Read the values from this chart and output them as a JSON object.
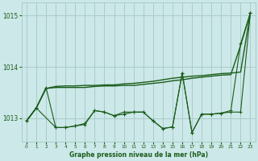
{
  "bg_color": "#cce8e8",
  "grid_color": "#aacccc",
  "line_color": "#1a5c1a",
  "title": "Graphe pression niveau de la mer (hPa)",
  "xlim": [
    -0.5,
    23.5
  ],
  "ylim": [
    1012.55,
    1015.25
  ],
  "yticks": [
    1013,
    1014,
    1015
  ],
  "xticks": [
    0,
    1,
    2,
    3,
    4,
    5,
    6,
    7,
    8,
    9,
    10,
    11,
    12,
    13,
    14,
    15,
    16,
    17,
    18,
    19,
    20,
    21,
    22,
    23
  ],
  "series1_x": [
    0,
    1,
    2,
    3,
    4,
    5,
    6,
    7,
    8,
    9,
    10,
    11,
    12,
    13,
    14,
    15,
    16,
    17,
    18,
    19,
    20,
    21,
    22,
    23
  ],
  "series1_y": [
    1012.95,
    1013.2,
    1013.58,
    1013.62,
    1013.63,
    1013.63,
    1013.64,
    1013.64,
    1013.65,
    1013.65,
    1013.67,
    1013.68,
    1013.7,
    1013.72,
    1013.75,
    1013.78,
    1013.8,
    1013.82,
    1013.83,
    1013.85,
    1013.87,
    1013.88,
    1013.9,
    1015.05
  ],
  "series2_x": [
    0,
    1,
    2,
    3,
    4,
    5,
    6,
    7,
    8,
    9,
    10,
    11,
    12,
    13,
    14,
    15,
    16,
    17,
    18,
    19,
    20,
    21,
    22,
    23
  ],
  "series2_y": [
    1012.95,
    1013.2,
    1013.58,
    1013.6,
    1013.6,
    1013.6,
    1013.6,
    1013.62,
    1013.63,
    1013.63,
    1013.64,
    1013.64,
    1013.66,
    1013.68,
    1013.7,
    1013.73,
    1013.75,
    1013.78,
    1013.8,
    1013.82,
    1013.84,
    1013.85,
    1014.42,
    1015.05
  ],
  "series3_x": [
    0,
    1,
    2,
    3,
    4,
    5,
    6,
    7,
    8,
    9,
    10,
    11,
    12,
    13,
    14,
    15,
    16,
    17,
    18,
    19,
    20,
    21,
    22,
    23
  ],
  "series3_y": [
    1012.95,
    1013.2,
    1013.6,
    1012.82,
    1012.82,
    1012.85,
    1012.88,
    1013.15,
    1013.12,
    1013.05,
    1013.12,
    1013.12,
    1013.12,
    1012.95,
    1012.8,
    1012.83,
    1013.88,
    1012.72,
    1013.08,
    1013.08,
    1013.1,
    1013.12,
    1013.12,
    1015.05
  ],
  "series4_x": [
    0,
    1,
    3,
    4,
    5,
    6,
    7,
    8,
    9,
    10,
    11,
    12,
    13,
    14,
    15,
    16,
    17,
    18,
    19,
    20,
    21,
    22,
    23
  ],
  "series4_y": [
    1012.95,
    1013.2,
    1012.82,
    1012.82,
    1012.85,
    1012.9,
    1013.15,
    1013.12,
    1013.05,
    1013.08,
    1013.12,
    1013.12,
    1012.95,
    1012.8,
    1012.83,
    1013.88,
    1012.72,
    1013.08,
    1013.08,
    1013.1,
    1013.15,
    1014.45,
    1015.05
  ]
}
